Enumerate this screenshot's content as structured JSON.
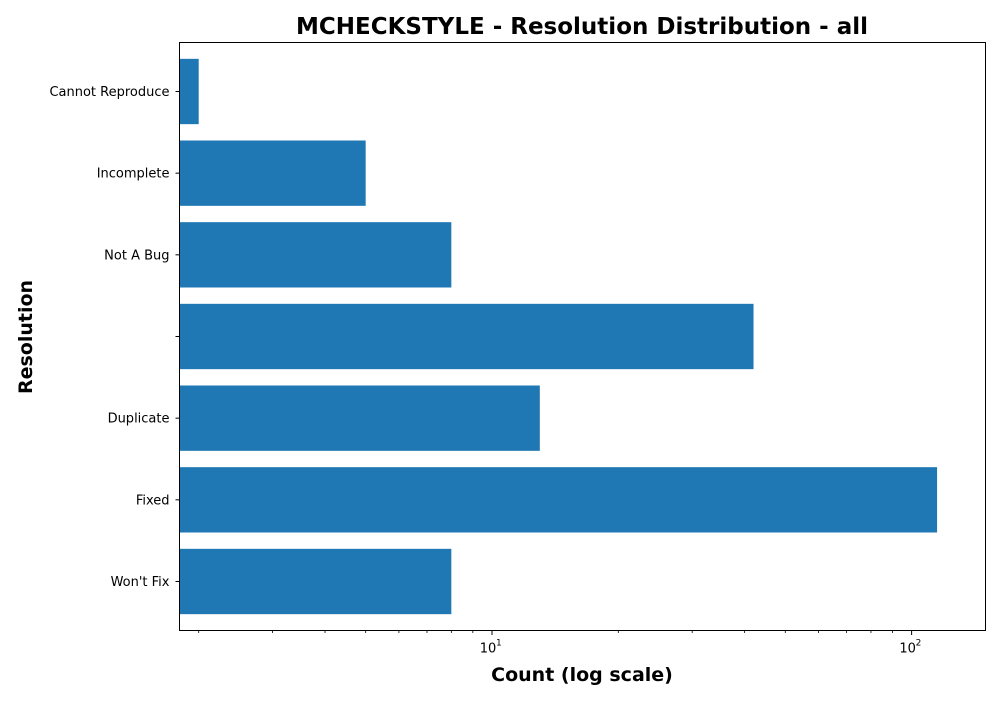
{
  "chart_data": {
    "type": "bar",
    "orientation": "horizontal",
    "title": "MCHECKSTYLE - Resolution Distribution - all",
    "xlabel": "Count (log scale)",
    "ylabel": "Resolution",
    "xscale": "log",
    "xlim": [
      1.8,
      150
    ],
    "x_major_ticks": [
      {
        "base": "10",
        "exponent": "1",
        "value": 10
      },
      {
        "base": "10",
        "exponent": "2",
        "value": 100
      }
    ],
    "x_minor_ticks": [
      2,
      3,
      4,
      5,
      6,
      7,
      8,
      9,
      20,
      30,
      40,
      50,
      60,
      70,
      80,
      90
    ],
    "categories": [
      "Won't Fix",
      "Fixed",
      "Duplicate",
      "",
      "Not A Bug",
      "Incomplete",
      "Cannot Reproduce"
    ],
    "values": [
      8,
      115,
      13,
      42,
      8,
      5,
      2
    ],
    "bar_color": "#1f77b4",
    "grid": false,
    "legend": "none"
  }
}
